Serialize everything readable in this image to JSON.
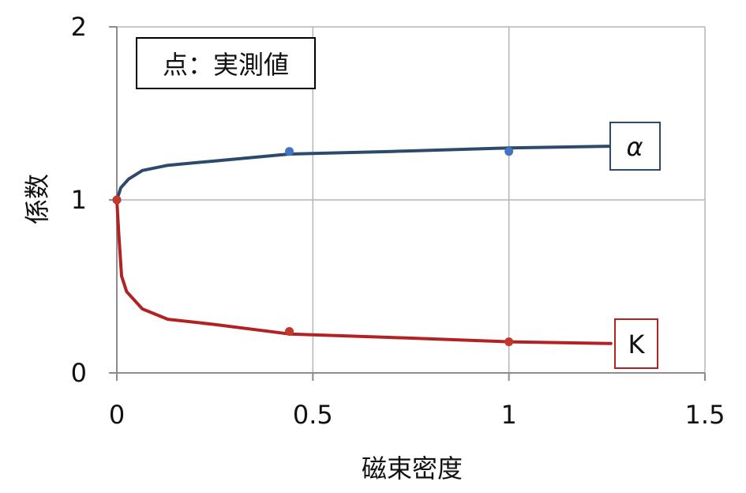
{
  "chart_data": {
    "type": "line",
    "xlabel": "磁束密度",
    "ylabel": "係数",
    "xlim": [
      0,
      1.5
    ],
    "ylim": [
      0,
      2
    ],
    "x_ticks": [
      "0",
      "0.5",
      "1",
      "1.5"
    ],
    "y_ticks": [
      "0",
      "1",
      "2"
    ],
    "grid": true,
    "annotation": "点：実測値",
    "series": [
      {
        "name": "α",
        "color": "#2e4a6a",
        "marker_color": "#4472c4",
        "curve": [
          [
            0,
            1.0
          ],
          [
            0.01,
            1.07
          ],
          [
            0.03,
            1.12
          ],
          [
            0.065,
            1.17
          ],
          [
            0.13,
            1.2
          ],
          [
            0.25,
            1.225
          ],
          [
            0.44,
            1.265
          ],
          [
            0.7,
            1.28
          ],
          [
            1.0,
            1.3
          ],
          [
            1.26,
            1.31
          ]
        ],
        "measured": [
          [
            0,
            1.0
          ],
          [
            0.44,
            1.28
          ],
          [
            1.0,
            1.28
          ]
        ]
      },
      {
        "name": "K",
        "color": "#b22222",
        "marker_color": "#c0392b",
        "curve": [
          [
            0,
            1.0
          ],
          [
            0.005,
            0.8
          ],
          [
            0.012,
            0.56
          ],
          [
            0.025,
            0.47
          ],
          [
            0.065,
            0.37
          ],
          [
            0.13,
            0.31
          ],
          [
            0.25,
            0.28
          ],
          [
            0.44,
            0.225
          ],
          [
            0.7,
            0.205
          ],
          [
            1.0,
            0.18
          ],
          [
            1.26,
            0.17
          ]
        ],
        "measured": [
          [
            0,
            1.0
          ],
          [
            0.44,
            0.24
          ],
          [
            1.0,
            0.18
          ]
        ]
      }
    ]
  }
}
